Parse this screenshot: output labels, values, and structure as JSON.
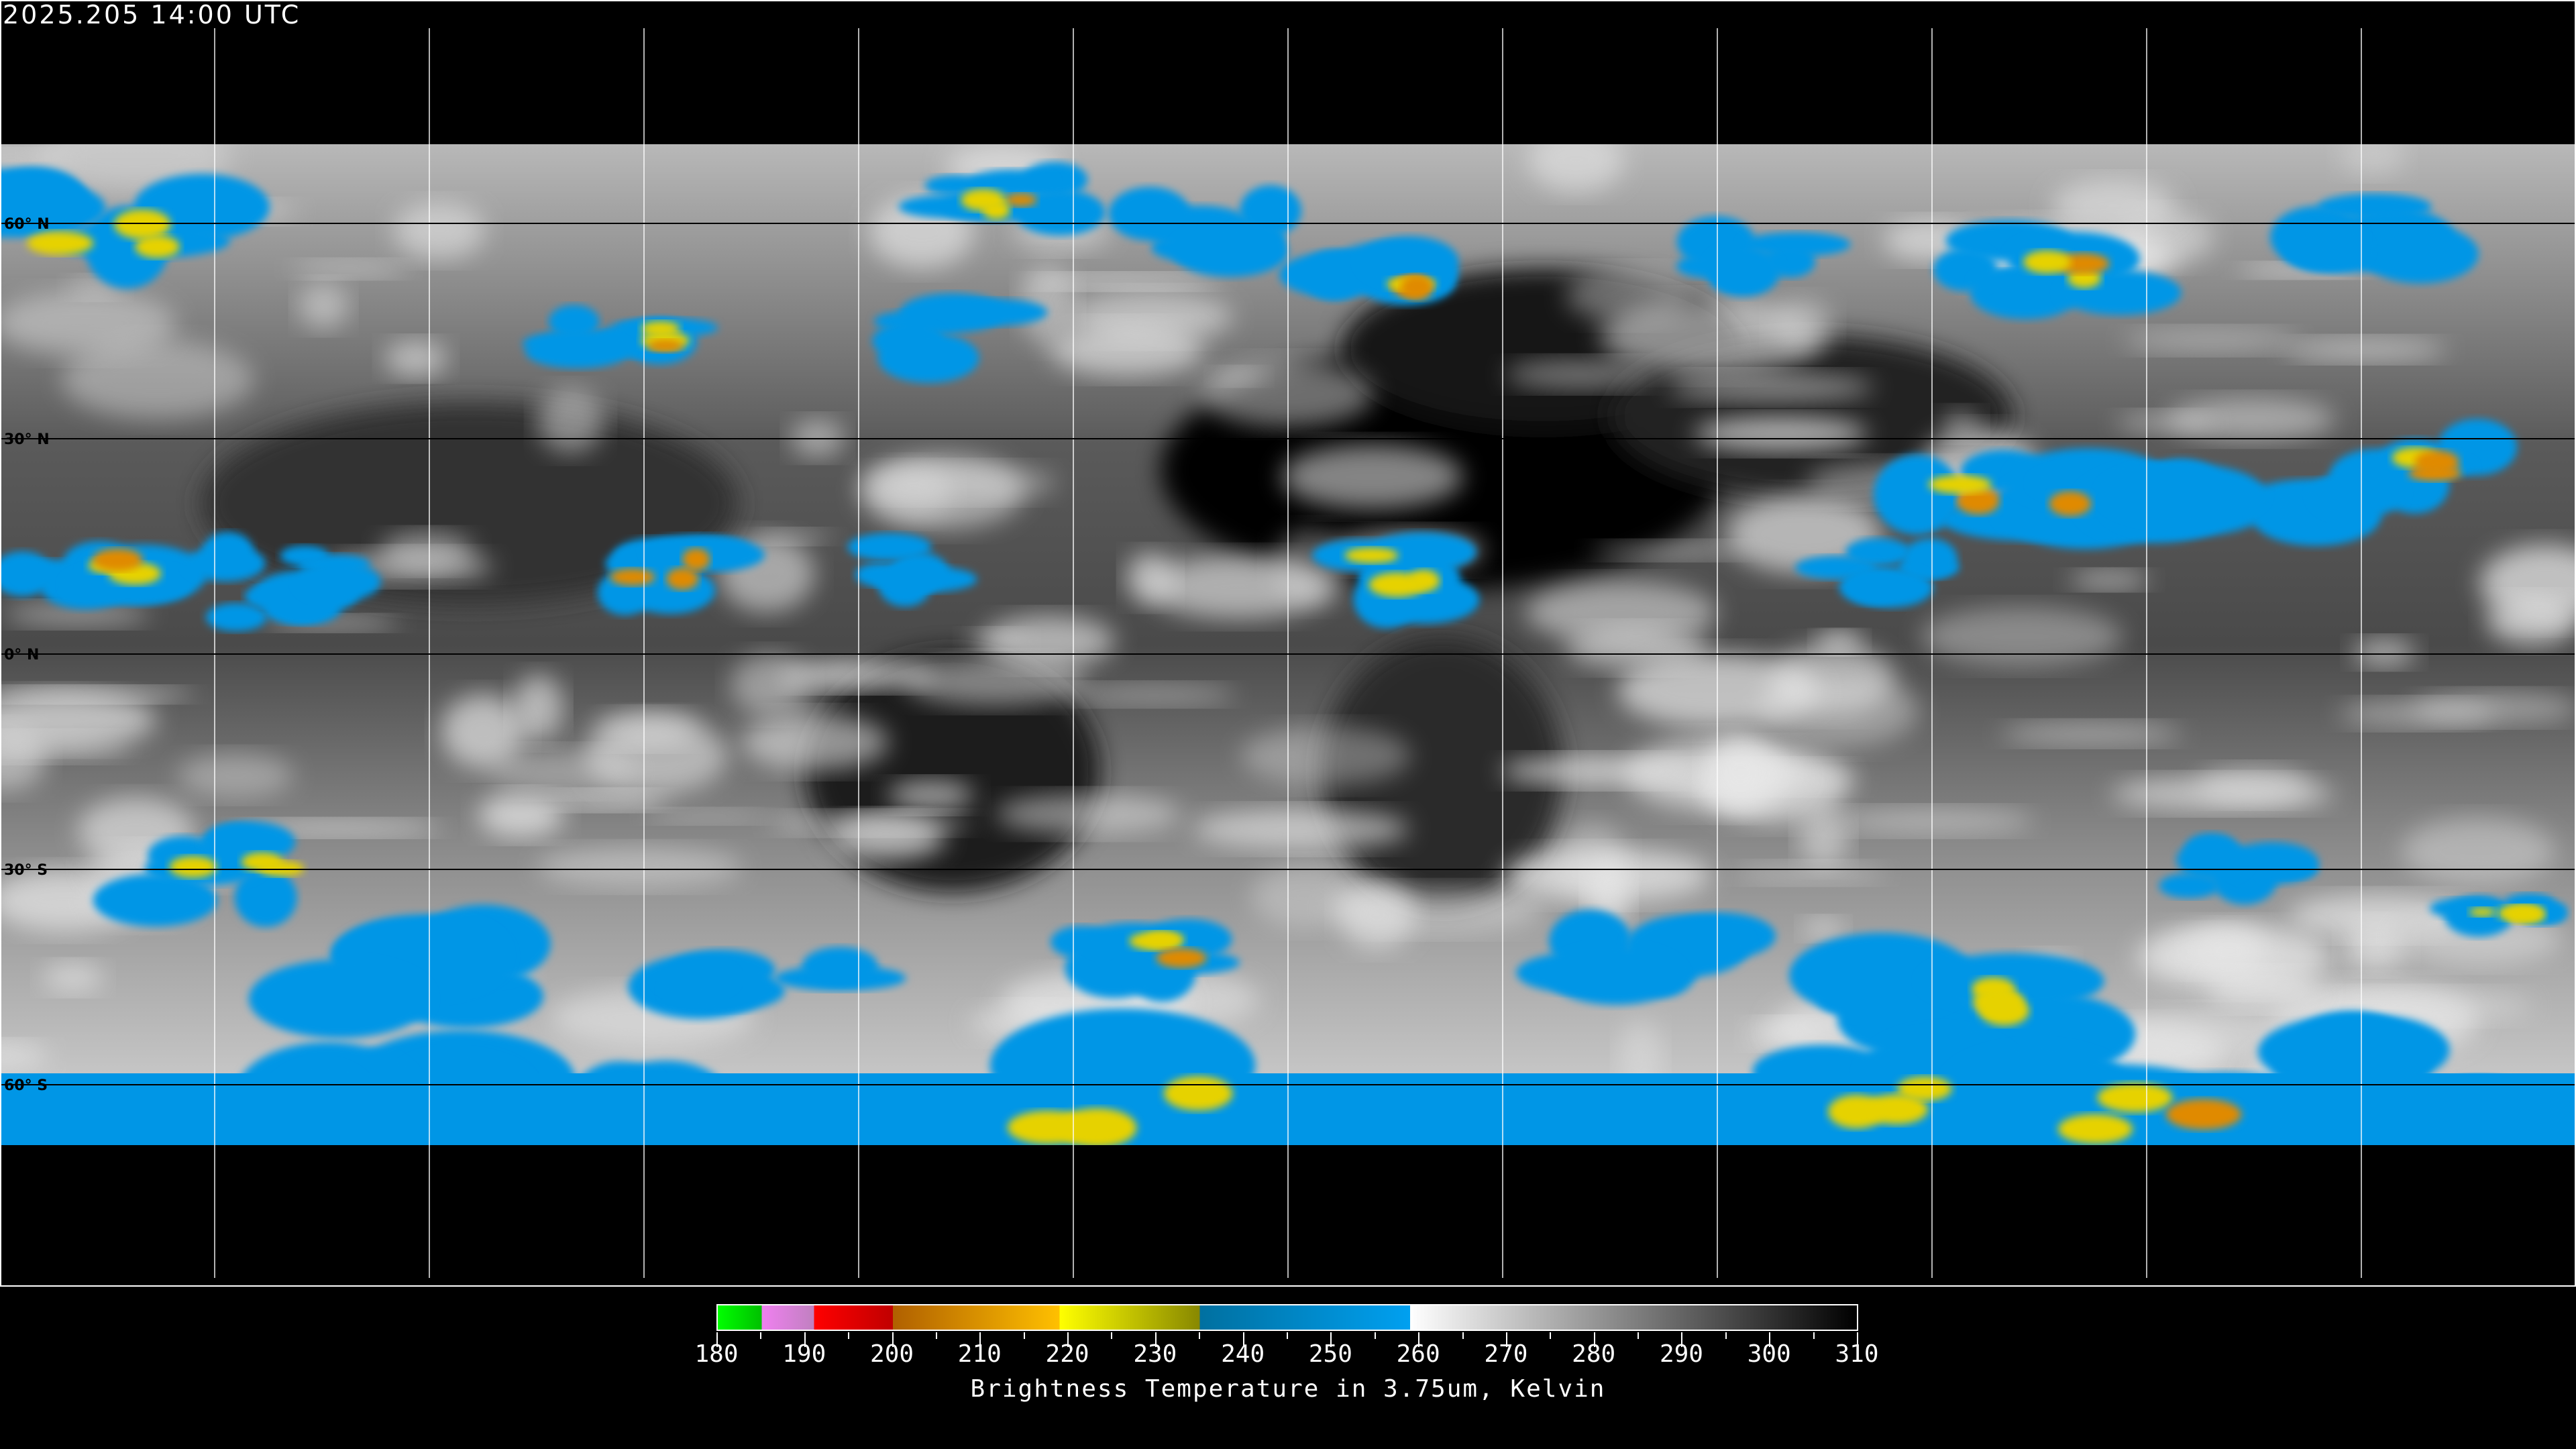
{
  "timestamp": "2025.205 14:00 UTC",
  "latitude_labels": [
    "60° N",
    "30° N",
    "0° N",
    "30° S",
    "60° S"
  ],
  "colorbar": {
    "title": "Brightness Temperature in 3.75um, Kelvin",
    "ticks": [
      "180",
      "190",
      "200",
      "210",
      "220",
      "230",
      "240",
      "250",
      "260",
      "270",
      "280",
      "290",
      "300",
      "310"
    ],
    "range": [
      180,
      310
    ],
    "segments": [
      {
        "from": 180,
        "to": 185,
        "colors": [
          "#00ff00",
          "#00c000"
        ]
      },
      {
        "from": 185,
        "to": 191,
        "colors": [
          "#f080f0",
          "#c080c0"
        ]
      },
      {
        "from": 191,
        "to": 200,
        "colors": [
          "#ff0000",
          "#c00000"
        ]
      },
      {
        "from": 200,
        "to": 219,
        "colors": [
          "#b06000",
          "#ffc000"
        ]
      },
      {
        "from": 219,
        "to": 235,
        "colors": [
          "#ffff00",
          "#888800"
        ]
      },
      {
        "from": 235,
        "to": 259,
        "colors": [
          "#0070a0",
          "#00a0f0"
        ]
      },
      {
        "from": 259,
        "to": 310,
        "colors": [
          "#ffffff",
          "#000000"
        ]
      }
    ]
  },
  "colors": {
    "background": "#000000",
    "gridline": "#ffffff",
    "cold_cloud": "#0096e6",
    "deep_convection": "#e6d200",
    "very_cold": "#e08a00"
  }
}
